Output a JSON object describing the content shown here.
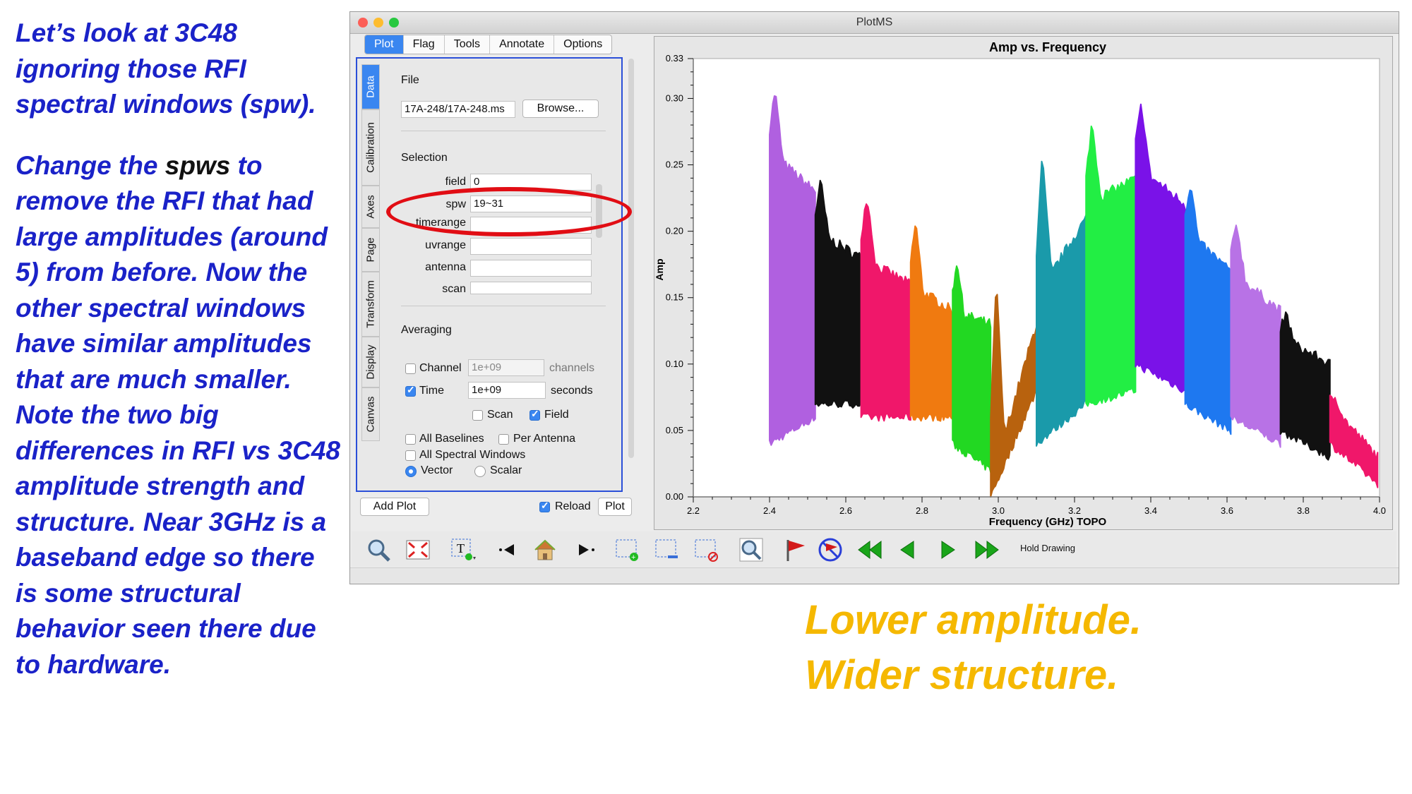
{
  "slide": {
    "para1": "Let’s look at 3C48 ignoring those RFI spectral windows (spw).",
    "para2_a": "Change the ",
    "para2_b": "spws",
    "para2_c": " to remove the RFI that had large amplitudes (around 5) from before. Now the other spectral windows have similar amplitudes that are much smaller. Note the two big differences in RFI vs 3C48 amplitude strength and structure. Near 3GHz is a baseband edge so there is some structural behavior seen there due to hardware.",
    "callout1": "Lower amplitude.",
    "callout2": "Wider structure."
  },
  "window": {
    "title": "PlotMS",
    "traffic": [
      "#fc5f57",
      "#fdbc2e",
      "#28c840"
    ],
    "tabs": [
      {
        "label": "Plot"
      },
      {
        "label": "Flag"
      },
      {
        "label": "Tools"
      },
      {
        "label": "Annotate"
      },
      {
        "label": "Options"
      }
    ]
  },
  "side_tabs": [
    "Data",
    "Calibration",
    "Axes",
    "Page",
    "Transform",
    "Display",
    "Canvas"
  ],
  "data_panel": {
    "file_heading": "File",
    "file_value": "17A-248/17A-248.ms",
    "browse_label": "Browse...",
    "selection_heading": "Selection",
    "selection": [
      {
        "label": "field",
        "value": "0"
      },
      {
        "label": "spw",
        "value": "19~31"
      },
      {
        "label": "timerange",
        "value": ""
      },
      {
        "label": "uvrange",
        "value": ""
      },
      {
        "label": "antenna",
        "value": ""
      },
      {
        "label": "scan",
        "value": ""
      }
    ],
    "averaging_heading": "Averaging",
    "channel_label": "Channel",
    "channel_value": "1e+09",
    "channel_unit": "channels",
    "time_label": "Time",
    "time_value": "1e+09",
    "time_unit": "seconds",
    "scan_label": "Scan",
    "field_label": "Field",
    "all_baselines": "All Baselines",
    "per_antenna": "Per Antenna",
    "all_spw": "All Spectral Windows",
    "vector": "Vector",
    "scalar": "Scalar"
  },
  "bottom_buttons": {
    "add_plot": "Add Plot",
    "reload": "Reload",
    "plot": "Plot"
  },
  "toolbar": {
    "hold_drawing": "Hold Drawing"
  },
  "chart_data": {
    "type": "scatter",
    "title": "Amp vs. Frequency",
    "xlabel": "Frequency (GHz) TOPO",
    "ylabel": "Amp",
    "xlim": [
      2.2,
      4.0
    ],
    "ylim": [
      0.0,
      0.33
    ],
    "xticks": [
      "2.2",
      "2.4",
      "2.6",
      "2.8",
      "3.0",
      "3.2",
      "3.4",
      "3.6",
      "3.8",
      "4.0"
    ],
    "yticks": [
      "0.00",
      "0.05",
      "0.10",
      "0.15",
      "0.20",
      "0.25",
      "0.30",
      "0.33"
    ],
    "series": [
      {
        "color": "#b060e0",
        "x_start": 2.4,
        "x_end": 2.52,
        "peak": 0.31,
        "top_start": 0.26,
        "top_end": 0.23,
        "bottom_start": 0.04,
        "bottom_end": 0.06
      },
      {
        "color": "#111111",
        "x_start": 2.52,
        "x_end": 2.64,
        "peak": 0.24,
        "top_start": 0.2,
        "top_end": 0.18,
        "bottom_start": 0.07,
        "bottom_end": 0.07
      },
      {
        "color": "#f0176a",
        "x_start": 2.64,
        "x_end": 2.77,
        "peak": 0.23,
        "top_start": 0.18,
        "top_end": 0.16,
        "bottom_start": 0.06,
        "bottom_end": 0.06
      },
      {
        "color": "#f07a10",
        "x_start": 2.77,
        "x_end": 2.88,
        "peak": 0.21,
        "top_start": 0.16,
        "top_end": 0.14,
        "bottom_start": 0.06,
        "bottom_end": 0.06
      },
      {
        "color": "#22d822",
        "x_start": 2.88,
        "x_end": 2.98,
        "peak": 0.18,
        "top_start": 0.14,
        "top_end": 0.13,
        "bottom_start": 0.04,
        "bottom_end": 0.02
      },
      {
        "color": "#b8620e",
        "x_start": 2.98,
        "x_end": 3.1,
        "peak": 0.15,
        "top_start": 0.01,
        "top_end": 0.13,
        "bottom_start": 0.0,
        "bottom_end": 0.08
      },
      {
        "color": "#1a9aaa",
        "x_start": 3.1,
        "x_end": 3.23,
        "peak": 0.25,
        "top_start": 0.15,
        "top_end": 0.21,
        "bottom_start": 0.04,
        "bottom_end": 0.07
      },
      {
        "color": "#22ee44",
        "x_start": 3.23,
        "x_end": 3.36,
        "peak": 0.28,
        "top_start": 0.22,
        "top_end": 0.24,
        "bottom_start": 0.07,
        "bottom_end": 0.08
      },
      {
        "color": "#7a12e8",
        "x_start": 3.36,
        "x_end": 3.49,
        "peak": 0.3,
        "top_start": 0.25,
        "top_end": 0.22,
        "bottom_start": 0.1,
        "bottom_end": 0.08
      },
      {
        "color": "#1e78f0",
        "x_start": 3.49,
        "x_end": 3.61,
        "peak": 0.24,
        "top_start": 0.2,
        "top_end": 0.17,
        "bottom_start": 0.07,
        "bottom_end": 0.05
      },
      {
        "color": "#b872e6",
        "x_start": 3.61,
        "x_end": 3.74,
        "peak": 0.21,
        "top_start": 0.17,
        "top_end": 0.14,
        "bottom_start": 0.06,
        "bottom_end": 0.04
      },
      {
        "color": "#111111",
        "x_start": 3.74,
        "x_end": 3.87,
        "peak": 0.14,
        "top_start": 0.12,
        "top_end": 0.1,
        "bottom_start": 0.05,
        "bottom_end": 0.03
      },
      {
        "color": "#f0176a",
        "x_start": 3.87,
        "x_end": 3.995,
        "peak": 0.08,
        "top_start": 0.07,
        "top_end": 0.03,
        "bottom_start": 0.04,
        "bottom_end": 0.01
      }
    ]
  }
}
